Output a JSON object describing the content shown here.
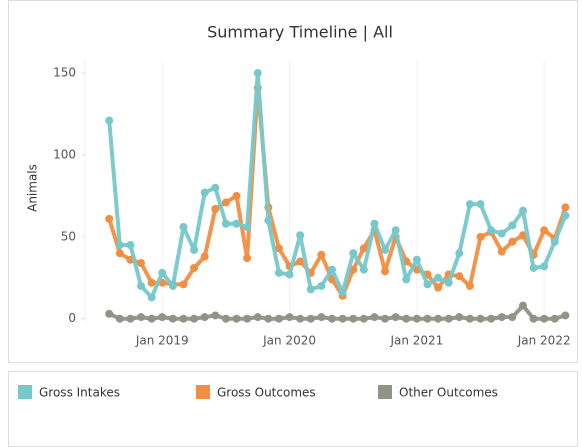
{
  "chart_data": {
    "type": "line",
    "title": "Summary Timeline | All",
    "ylabel": "Animals",
    "x": [
      "2018-08",
      "2018-09",
      "2018-10",
      "2018-11",
      "2018-12",
      "2019-01",
      "2019-02",
      "2019-03",
      "2019-04",
      "2019-05",
      "2019-06",
      "2019-07",
      "2019-08",
      "2019-09",
      "2019-10",
      "2019-11",
      "2019-12",
      "2020-01",
      "2020-02",
      "2020-03",
      "2020-04",
      "2020-05",
      "2020-06",
      "2020-07",
      "2020-08",
      "2020-09",
      "2020-10",
      "2020-11",
      "2020-12",
      "2021-01",
      "2021-02",
      "2021-03",
      "2021-04",
      "2021-05",
      "2021-06",
      "2021-07",
      "2021-08",
      "2021-09",
      "2021-10",
      "2021-11",
      "2021-12",
      "2022-01",
      "2022-02",
      "2022-03"
    ],
    "series": [
      {
        "name": "Gross Intakes",
        "color": "#76c8ca",
        "values": [
          121,
          45,
          45,
          20,
          13,
          28,
          20,
          56,
          42,
          77,
          80,
          58,
          58,
          56,
          150,
          60,
          28,
          27,
          51,
          18,
          20,
          30,
          16,
          40,
          30,
          58,
          42,
          54,
          24,
          36,
          21,
          25,
          22,
          40,
          70,
          70,
          54,
          52,
          57,
          66,
          31,
          32,
          47,
          63
        ]
      },
      {
        "name": "Gross Outcomes",
        "color": "#f28e43",
        "values": [
          61,
          40,
          36,
          34,
          22,
          22,
          21,
          21,
          31,
          38,
          67,
          71,
          75,
          37,
          141,
          68,
          43,
          32,
          35,
          28,
          39,
          24,
          14,
          30,
          43,
          54,
          29,
          50,
          35,
          30,
          27,
          19,
          27,
          26,
          20,
          50,
          53,
          41,
          47,
          51,
          39,
          54,
          49,
          68
        ]
      },
      {
        "name": "Other Outcomes",
        "color": "#8f9485",
        "values": [
          3,
          0,
          0,
          1,
          0,
          1,
          0,
          0,
          0,
          1,
          2,
          0,
          0,
          0,
          1,
          0,
          0,
          1,
          0,
          0,
          1,
          0,
          0,
          0,
          0,
          1,
          0,
          1,
          0,
          0,
          0,
          0,
          0,
          1,
          0,
          0,
          0,
          1,
          1,
          8,
          0,
          0,
          0,
          2
        ]
      }
    ],
    "xlim": [
      "2018-06",
      "2022-04"
    ],
    "xticks": [
      {
        "value": "2019-01",
        "label": "Jan 2019"
      },
      {
        "value": "2020-01",
        "label": "Jan 2020"
      },
      {
        "value": "2021-01",
        "label": "Jan 2021"
      },
      {
        "value": "2022-01",
        "label": "Jan 2022"
      }
    ],
    "ylim": [
      -2,
      158
    ],
    "yticks": [
      0,
      50,
      100,
      150
    ],
    "grid": false
  }
}
